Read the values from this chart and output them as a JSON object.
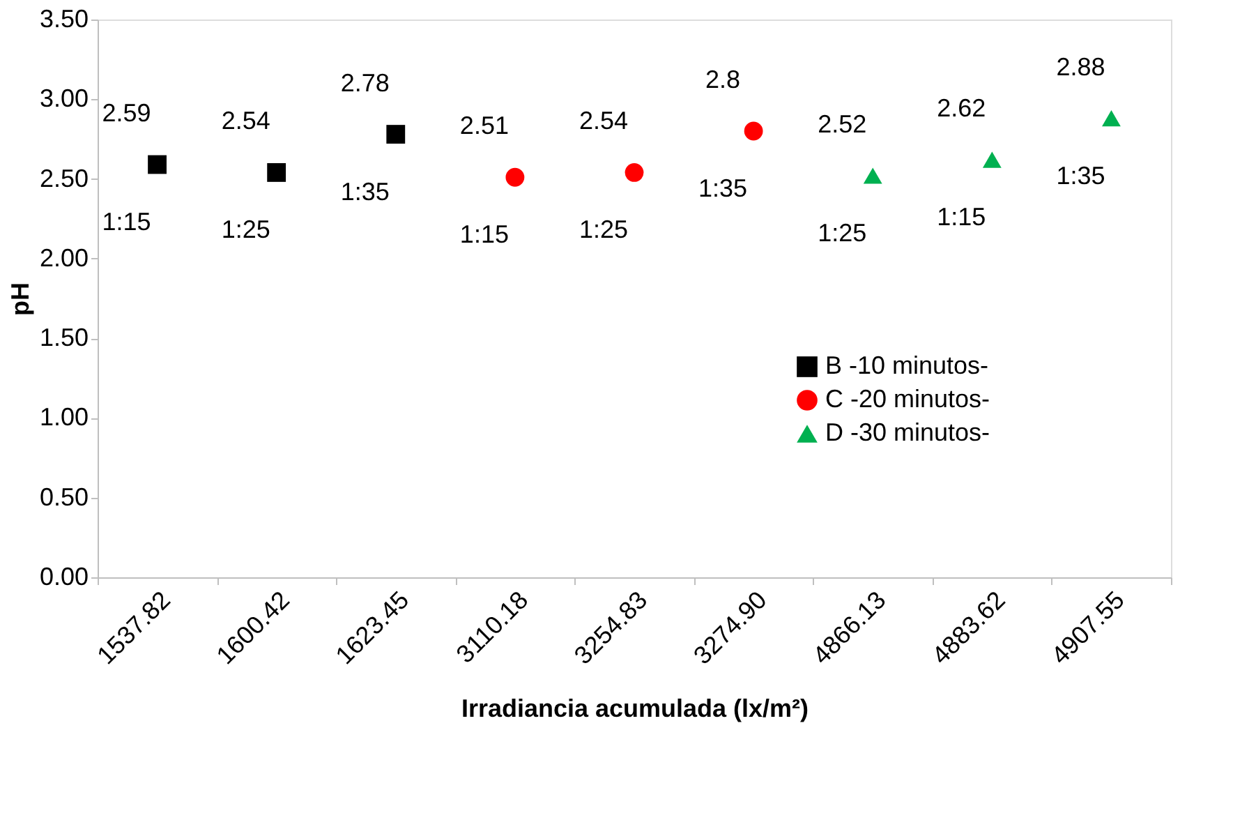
{
  "chart_data": {
    "type": "scatter",
    "xlabel": "Irradiancia acumulada (lx/m²)",
    "ylabel": "pH",
    "categories": [
      "1537.82",
      "1600.42",
      "1623.45",
      "3110.18",
      "3254.83",
      "3274.90",
      "4866.13",
      "4883.62",
      "4907.55"
    ],
    "series": [
      {
        "name": "B -10 minutos-",
        "color": "#000000",
        "marker": "square",
        "values": [
          2.59,
          2.54,
          2.78,
          null,
          null,
          null,
          null,
          null,
          null
        ]
      },
      {
        "name": "C -20 minutos-",
        "color": "#ff0000",
        "marker": "circle",
        "values": [
          null,
          null,
          null,
          2.51,
          2.54,
          2.8,
          null,
          null,
          null
        ]
      },
      {
        "name": "D -30 minutos-",
        "color": "#00b050",
        "marker": "triangle",
        "values": [
          null,
          null,
          null,
          null,
          null,
          null,
          2.52,
          2.62,
          2.88
        ]
      }
    ],
    "ylim": [
      0,
      3.5
    ],
    "yticks": [
      {
        "value": 0,
        "label": "0.00"
      },
      {
        "value": 0.5,
        "label": "0.50"
      },
      {
        "value": 1,
        "label": "1.00"
      },
      {
        "value": 1.5,
        "label": "1.50"
      },
      {
        "value": 2,
        "label": "2.00"
      },
      {
        "value": 2.5,
        "label": "2.50"
      },
      {
        "value": 3,
        "label": "3.00"
      },
      {
        "value": 3.5,
        "label": "3.50"
      }
    ],
    "data_labels": true,
    "annotations": [
      {
        "text": "1:15",
        "x": "1537.82",
        "y": 2.59
      },
      {
        "text": "1:25",
        "x": "1600.42",
        "y": 2.54
      },
      {
        "text": "1:35",
        "x": "1623.45",
        "y": 2.78
      },
      {
        "text": "1:15",
        "x": "3110.18",
        "y": 2.51
      },
      {
        "text": "1:25",
        "x": "3254.83",
        "y": 2.54
      },
      {
        "text": "1:35",
        "x": "3274.90",
        "y": 2.8
      },
      {
        "text": "1:25",
        "x": "4866.13",
        "y": 2.52
      },
      {
        "text": "1:15",
        "x": "4883.62",
        "y": 2.62
      },
      {
        "text": "1:35",
        "x": "4907.55",
        "y": 2.88
      }
    ],
    "grid": false,
    "legend": "right"
  }
}
